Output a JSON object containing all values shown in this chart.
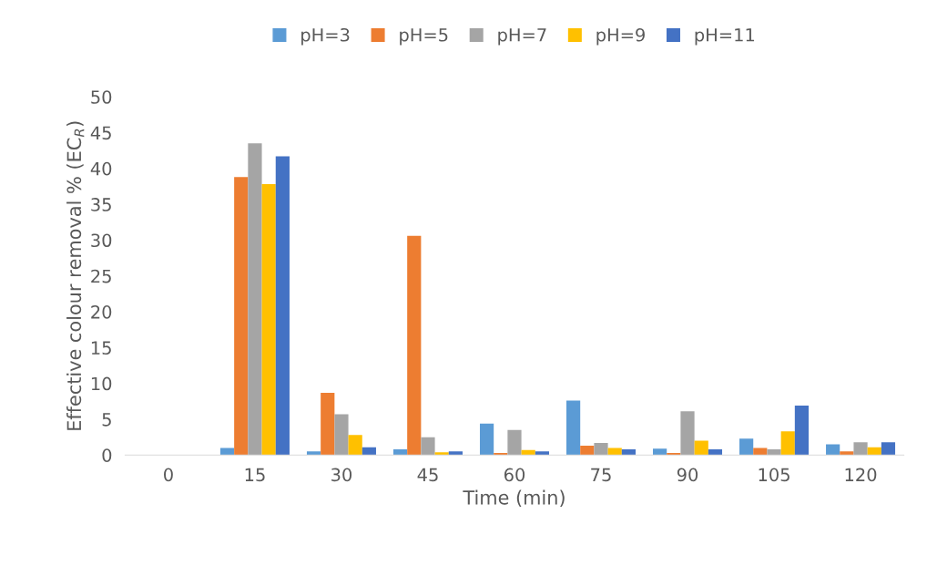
{
  "chart_data": {
    "type": "bar",
    "xlabel": "Time (min)",
    "ylabel": "Effective colour removal % (EC$_{R}$)",
    "categories": [
      "0",
      "15",
      "30",
      "45",
      "60",
      "75",
      "90",
      "105",
      "120"
    ],
    "series": [
      {
        "name": "pH=3",
        "color": "#5b9bd5",
        "values": [
          0,
          1.0,
          0.5,
          0.8,
          4.4,
          7.6,
          0.9,
          2.3,
          1.5
        ]
      },
      {
        "name": "pH=5",
        "color": "#ed7d31",
        "values": [
          0,
          38.8,
          8.7,
          30.6,
          0.3,
          1.3,
          0.3,
          1.0,
          0.5
        ]
      },
      {
        "name": "pH=7",
        "color": "#a5a5a5",
        "values": [
          0,
          43.5,
          5.7,
          2.5,
          3.5,
          1.7,
          6.1,
          0.8,
          1.8
        ]
      },
      {
        "name": "pH=9",
        "color": "#ffc000",
        "values": [
          0,
          37.8,
          2.8,
          0.4,
          0.7,
          1.0,
          2.0,
          3.3,
          1.1
        ]
      },
      {
        "name": "pH=11",
        "color": "#4472c4",
        "values": [
          0,
          41.7,
          1.1,
          0.5,
          0.5,
          0.8,
          0.8,
          6.9,
          1.8
        ]
      }
    ],
    "ylim": [
      0,
      50
    ],
    "yticks": [
      0,
      5,
      10,
      15,
      20,
      25,
      30,
      35,
      40,
      45,
      50
    ],
    "grid": false,
    "legend": "top"
  }
}
